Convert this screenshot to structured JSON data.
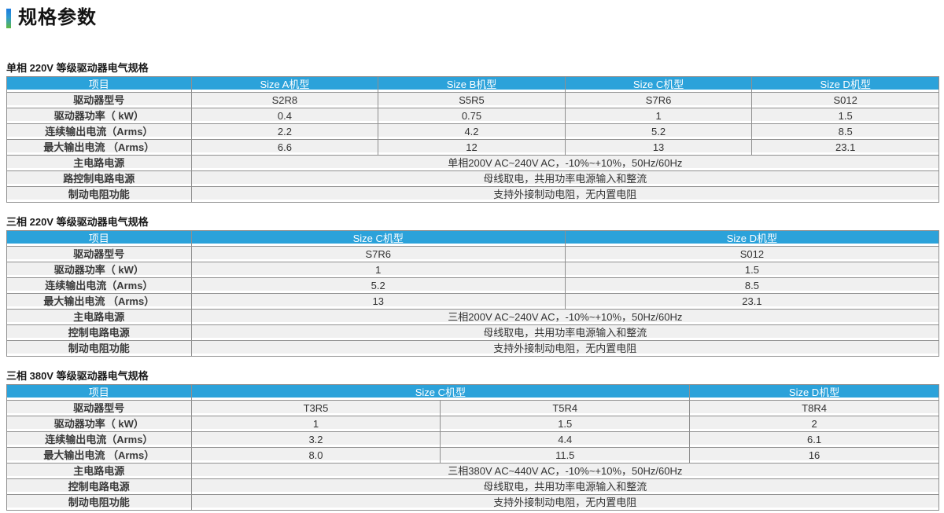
{
  "page_title": "规格参数",
  "accent_colors": {
    "top": "#1b7ce0",
    "bottom": "#5eb83f"
  },
  "theme": {
    "header_bg": "#2ba2da",
    "header_text": "#ffffff",
    "row_bg": "#f0f0f0",
    "border": "#8f8f8f"
  },
  "tables": [
    {
      "caption": "单相 220V 等级驱动器电气规格",
      "col_widths": [
        "19.8%",
        "20.05%",
        "20.05%",
        "20.05%",
        "20.05%"
      ],
      "header": [
        {
          "label": "项目",
          "colspan": 1
        },
        {
          "label": "Size A机型",
          "colspan": 1
        },
        {
          "label": "Size B机型",
          "colspan": 1
        },
        {
          "label": "Size C机型",
          "colspan": 1
        },
        {
          "label": "Size D机型",
          "colspan": 1
        }
      ],
      "rows": [
        {
          "label": "驱动器型号",
          "values": [
            "S2R8",
            "S5R5",
            "S7R6",
            "S012"
          ]
        },
        {
          "label": "驱动器功率（ kW）",
          "values": [
            "0.4",
            "0.75",
            "1",
            "1.5"
          ]
        },
        {
          "label": "连续输出电流（Arms）",
          "values": [
            "2.2",
            "4.2",
            "5.2",
            "8.5"
          ]
        },
        {
          "label": "最大输出电流 （Arms）",
          "values": [
            "6.6",
            "12",
            "13",
            "23.1"
          ]
        },
        {
          "label": "主电路电源",
          "span": "单相200V AC~240V AC，-10%~+10%，50Hz/60Hz"
        },
        {
          "label": "路控制电路电源",
          "span": "母线取电，共用功率电源输入和整流"
        },
        {
          "label": "制动电阻功能",
          "span": "支持外接制动电阻，无内置电阻"
        }
      ]
    },
    {
      "caption": "三相 220V 等级驱动器电气规格",
      "col_widths": [
        "19.8%",
        "40.1%",
        "40.1%"
      ],
      "header": [
        {
          "label": "项目",
          "colspan": 1
        },
        {
          "label": "Size C机型",
          "colspan": 1
        },
        {
          "label": "Size D机型",
          "colspan": 1
        }
      ],
      "rows": [
        {
          "label": "驱动器型号",
          "values": [
            "S7R6",
            "S012"
          ]
        },
        {
          "label": "驱动器功率（ kW）",
          "values": [
            "1",
            "1.5"
          ]
        },
        {
          "label": "连续输出电流（Arms）",
          "values": [
            "5.2",
            "8.5"
          ]
        },
        {
          "label": "最大输出电流 （Arms）",
          "values": [
            "13",
            "23.1"
          ]
        },
        {
          "label": "主电路电源",
          "span": "三相200V AC~240V AC，-10%~+10%，50Hz/60Hz"
        },
        {
          "label": "控制电路电源",
          "span": "母线取电，共用功率电源输入和整流"
        },
        {
          "label": "制动电阻功能",
          "span": "支持外接制动电阻，无内置电阻"
        }
      ]
    },
    {
      "caption": "三相 380V 等级驱动器电气规格",
      "col_widths": [
        "19.8%",
        "26.73%",
        "26.73%",
        "26.74%"
      ],
      "header": [
        {
          "label": "项目",
          "colspan": 1
        },
        {
          "label": "Size C机型",
          "colspan": 2
        },
        {
          "label": "Size D机型",
          "colspan": 1
        }
      ],
      "rows": [
        {
          "label": "驱动器型号",
          "values": [
            "T3R5",
            "T5R4",
            "T8R4"
          ]
        },
        {
          "label": "驱动器功率（ kW）",
          "values": [
            "1",
            "1.5",
            "2"
          ]
        },
        {
          "label": "连续输出电流（Arms）",
          "values": [
            "3.2",
            "4.4",
            "6.1"
          ]
        },
        {
          "label": "最大输出电流 （Arms）",
          "values": [
            "8.0",
            "11.5",
            "16"
          ]
        },
        {
          "label": "主电路电源",
          "span": "三相380V AC~440V AC，-10%~+10%，50Hz/60Hz"
        },
        {
          "label": "控制电路电源",
          "span": "母线取电，共用功率电源输入和整流"
        },
        {
          "label": "制动电阻功能",
          "span": "支持外接制动电阻，无内置电阻"
        }
      ]
    }
  ]
}
